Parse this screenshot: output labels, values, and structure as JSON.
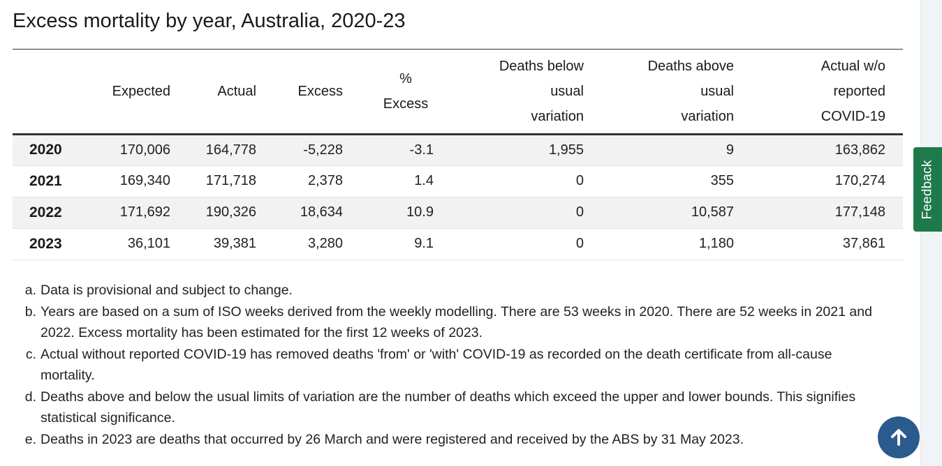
{
  "title": "Excess mortality by year, Australia, 2020-23",
  "table": {
    "headers": {
      "year": "",
      "expected": "Expected",
      "actual": "Actual",
      "excess": "Excess",
      "pct_excess_line1": "%",
      "pct_excess_line2": "Excess",
      "below_line1": "Deaths below",
      "below_line2": "usual",
      "below_line3": "variation",
      "above_line1": "Deaths above",
      "above_line2": "usual",
      "above_line3": "variation",
      "wo_line1": "Actual w/o",
      "wo_line2": "reported",
      "wo_line3": "COVID-19"
    },
    "rows": [
      {
        "year": "2020",
        "expected": "170,006",
        "actual": "164,778",
        "excess": "-5,228",
        "pct_excess": "-3.1",
        "below": "1,955",
        "above": "9",
        "wo_covid": "163,862"
      },
      {
        "year": "2021",
        "expected": "169,340",
        "actual": "171,718",
        "excess": "2,378",
        "pct_excess": "1.4",
        "below": "0",
        "above": "355",
        "wo_covid": "170,274"
      },
      {
        "year": "2022",
        "expected": "171,692",
        "actual": "190,326",
        "excess": "18,634",
        "pct_excess": "10.9",
        "below": "0",
        "above": "10,587",
        "wo_covid": "177,148"
      },
      {
        "year": "2023",
        "expected": "36,101",
        "actual": "39,381",
        "excess": "3,280",
        "pct_excess": "9.1",
        "below": "0",
        "above": "1,180",
        "wo_covid": "37,861"
      }
    ]
  },
  "notes": [
    {
      "marker": "a.",
      "text": "Data is provisional and subject to change."
    },
    {
      "marker": "b.",
      "text": "Years are based on a sum of ISO weeks derived from the weekly modelling. There are 53 weeks in 2020. There are 52 weeks in 2021 and 2022. Excess mortality has been estimated for the first 12 weeks of 2023."
    },
    {
      "marker": "c.",
      "text": "Actual without reported COVID-19 has removed deaths 'from' or 'with' COVID-19 as recorded on the death certificate from all-cause mortality."
    },
    {
      "marker": "d.",
      "text": "Deaths above and below the usual limits of variation are the number of deaths which exceed the upper and lower bounds. This signifies statistical significance."
    },
    {
      "marker": "e.",
      "text": "Deaths in 2023 are deaths that occurred by 26 March and were registered and received by the ABS by 31 May 2023."
    }
  ],
  "feedback": {
    "label": "Feedback"
  },
  "back_to_top": {
    "icon": "arrow-up-icon"
  },
  "colors": {
    "feedback_bg": "#1f7a4b",
    "back_to_top_bg": "#2b5a8f",
    "row_shade": "#f2f2f2"
  }
}
